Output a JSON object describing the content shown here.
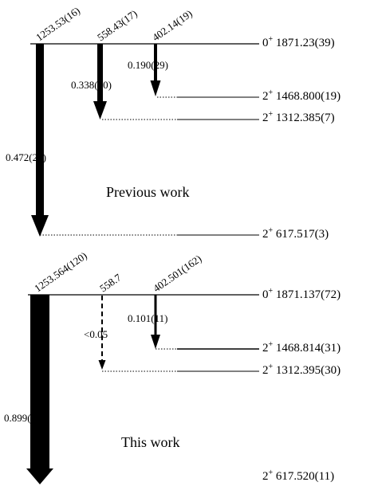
{
  "panels": [
    {
      "title": "Previous work",
      "levels": [
        {
          "spin": "0",
          "parity": "+",
          "energy": "1871.23(39)"
        },
        {
          "spin": "2",
          "parity": "+",
          "energy": "1468.800(19)"
        },
        {
          "spin": "2",
          "parity": "+",
          "energy": "1312.385(7)"
        },
        {
          "spin": "2",
          "parity": "+",
          "energy": "617.517(3)"
        }
      ],
      "transitions": [
        {
          "gamma": "1253.53(16)",
          "intensity": "0.472(25)",
          "dashed": false
        },
        {
          "gamma": "558.43(17)",
          "intensity": "0.338(20)",
          "dashed": false
        },
        {
          "gamma": "402.14(19)",
          "intensity": "0.190(29)",
          "dashed": false
        }
      ]
    },
    {
      "title": "This work",
      "levels": [
        {
          "spin": "0",
          "parity": "+",
          "energy": "1871.137(72)"
        },
        {
          "spin": "2",
          "parity": "+",
          "energy": "1468.814(31)"
        },
        {
          "spin": "2",
          "parity": "+",
          "energy": "1312.395(30)"
        },
        {
          "spin": "2",
          "parity": "+",
          "energy": "617.520(11)"
        }
      ],
      "transitions": [
        {
          "gamma": "1253.564(120)",
          "intensity": "0.899(11)",
          "dashed": false
        },
        {
          "gamma": "558.7",
          "intensity": "<0.05",
          "dashed": true
        },
        {
          "gamma": "402.501(162)",
          "intensity": "0.101(11)",
          "dashed": false
        }
      ]
    }
  ]
}
